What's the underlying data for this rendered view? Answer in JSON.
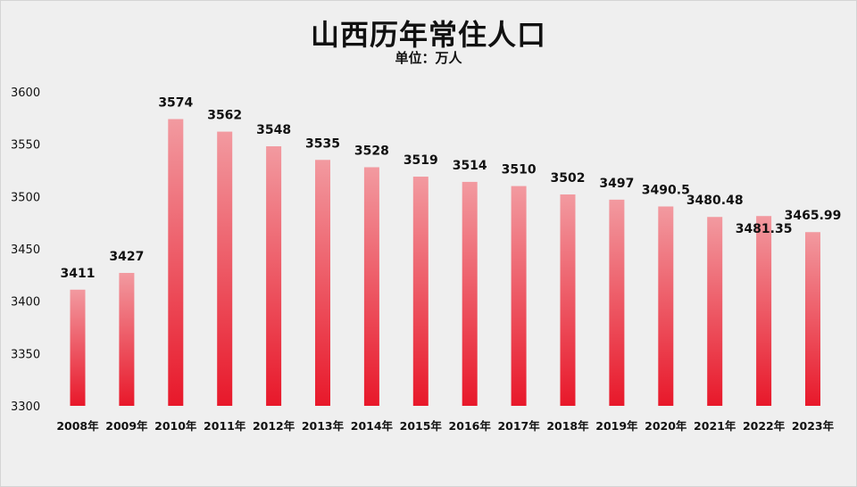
{
  "chart_data": {
    "type": "bar",
    "title": "山西历年常住人口",
    "subtitle": "单位：万人",
    "categories": [
      "2008年",
      "2009年",
      "2010年",
      "2011年",
      "2012年",
      "2013年",
      "2014年",
      "2015年",
      "2016年",
      "2017年",
      "2018年",
      "2019年",
      "2020年",
      "2021年",
      "2022年",
      "2023年"
    ],
    "values": [
      3411,
      3427,
      3574,
      3562,
      3548,
      3535,
      3528,
      3519,
      3514,
      3510,
      3502,
      3497,
      3490.5,
      3480.48,
      3481.35,
      3465.99
    ],
    "data_labels": [
      "3411",
      "3427",
      "3574",
      "3562",
      "3548",
      "3535",
      "3528",
      "3519",
      "3514",
      "3510",
      "3502",
      "3497",
      "3490.5",
      "3480.48",
      "3481.35",
      "3465.99"
    ],
    "ylim": [
      3300,
      3600
    ],
    "yticks": [
      "3300",
      "3350",
      "3400",
      "3450",
      "3500",
      "3550",
      "3600"
    ],
    "xlabel": "",
    "ylabel": "",
    "grid": false,
    "bar_color_top": "#f29aa0",
    "bar_color_bottom": "#e8182a"
  }
}
